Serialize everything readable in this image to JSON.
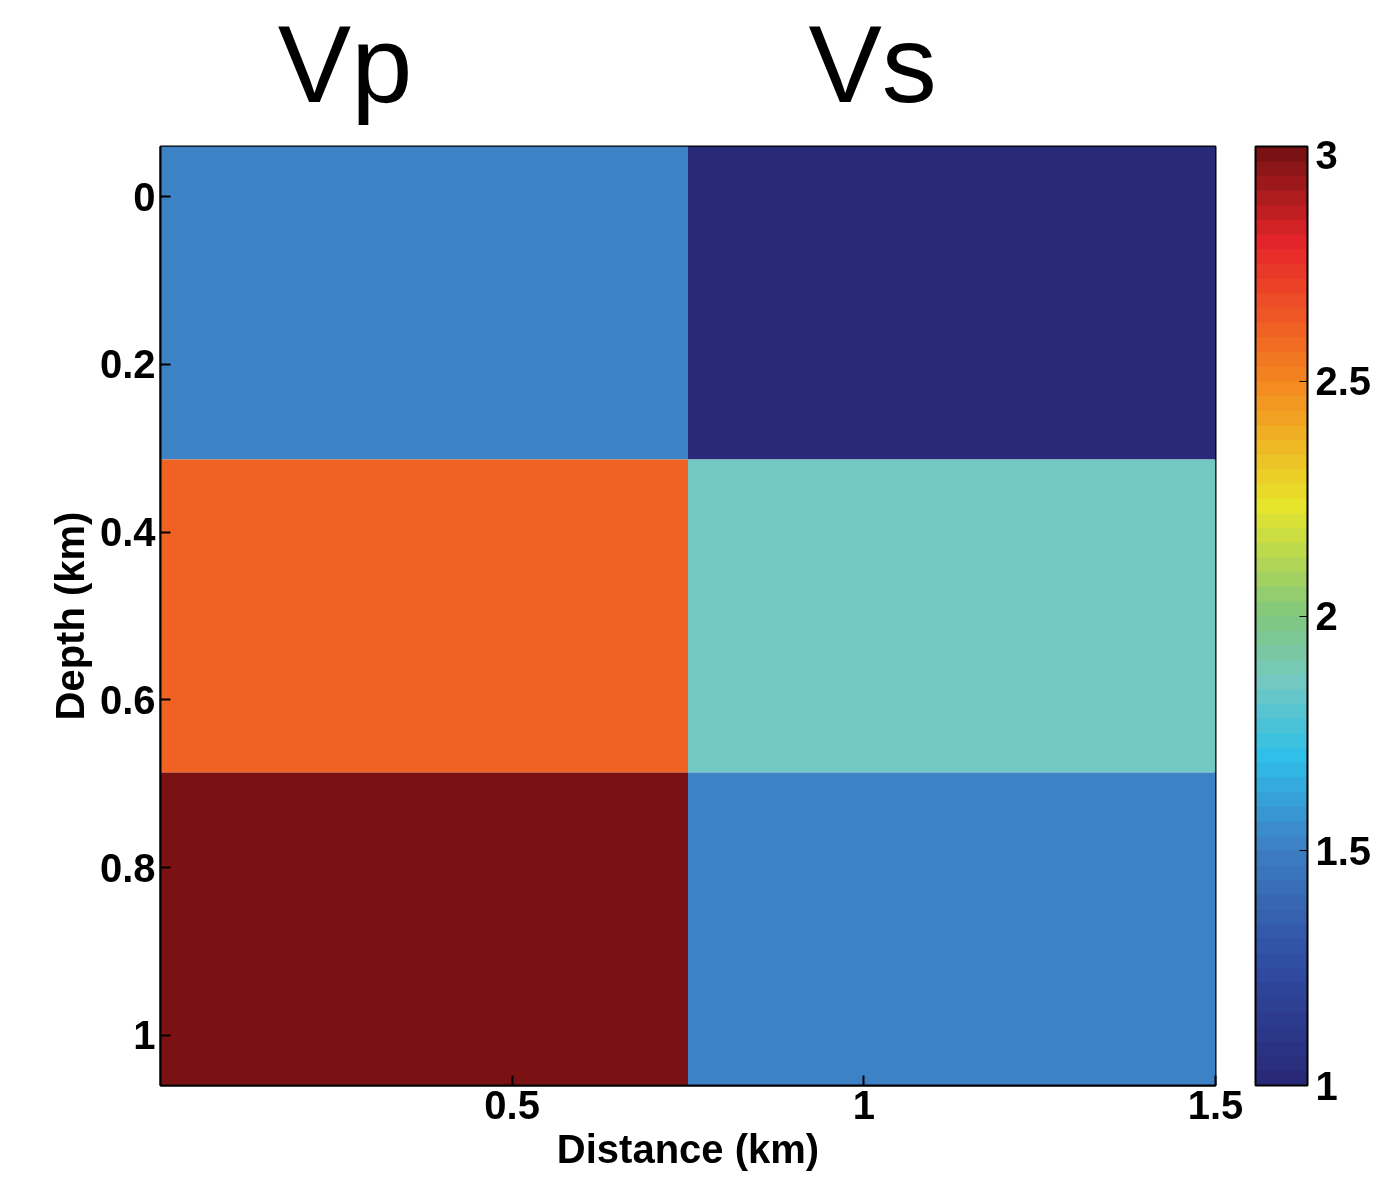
{
  "chart_data": {
    "type": "heatmap",
    "annotations": [
      "Vp",
      "Vs"
    ],
    "xlabel": "Distance (km)",
    "ylabel": "Depth (km)",
    "x": [
      0.375,
      1.125
    ],
    "cells": [
      [
        1.5,
        1.0
      ],
      [
        2.6,
        1.85
      ],
      [
        3.0,
        1.5
      ]
    ],
    "xlim": [
      0,
      1.5
    ],
    "xticks": [
      0.5,
      1,
      1.5
    ],
    "ylim": [
      1.06,
      -0.06
    ],
    "yticks": [
      0,
      0.2,
      0.4,
      0.6,
      0.8,
      1
    ],
    "clim": [
      1,
      3
    ],
    "cticks": [
      1,
      1.5,
      2,
      2.5,
      3
    ],
    "grid": false
  }
}
